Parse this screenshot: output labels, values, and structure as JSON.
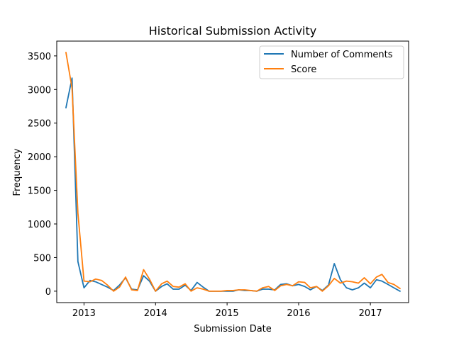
{
  "chart_data": {
    "type": "line",
    "title": "Historical Submission Activity",
    "xlabel": "Submission Date",
    "ylabel": "Frequency",
    "x_axis_type": "date",
    "xlim": [
      "2012-08-15",
      "2017-07-15"
    ],
    "ylim": [
      -170,
      3720
    ],
    "x_ticks": [
      {
        "value": "2013-01-01",
        "label": "2013"
      },
      {
        "value": "2014-01-01",
        "label": "2014"
      },
      {
        "value": "2015-01-01",
        "label": "2015"
      },
      {
        "value": "2016-01-01",
        "label": "2016"
      },
      {
        "value": "2017-01-01",
        "label": "2017"
      }
    ],
    "y_ticks": [
      0,
      500,
      1000,
      1500,
      2000,
      2500,
      3000,
      3500
    ],
    "grid": false,
    "legend_position": "top-right",
    "x": [
      "2012-10-01",
      "2012-11-01",
      "2012-12-01",
      "2013-01-01",
      "2013-02-01",
      "2013-03-01",
      "2013-04-01",
      "2013-05-01",
      "2013-06-01",
      "2013-07-01",
      "2013-08-01",
      "2013-09-01",
      "2013-10-01",
      "2013-11-01",
      "2013-12-01",
      "2014-01-01",
      "2014-02-01",
      "2014-03-01",
      "2014-04-01",
      "2014-05-01",
      "2014-06-01",
      "2014-07-01",
      "2014-08-01",
      "2014-09-01",
      "2014-10-01",
      "2014-11-01",
      "2014-12-01",
      "2015-01-01",
      "2015-02-01",
      "2015-03-01",
      "2015-04-01",
      "2015-05-01",
      "2015-06-01",
      "2015-07-01",
      "2015-08-01",
      "2015-09-01",
      "2015-10-01",
      "2015-11-01",
      "2015-12-01",
      "2016-01-01",
      "2016-02-01",
      "2016-03-01",
      "2016-04-01",
      "2016-05-01",
      "2016-06-01",
      "2016-07-01",
      "2016-08-01",
      "2016-09-01",
      "2016-10-01",
      "2016-11-01",
      "2016-12-01",
      "2017-01-01",
      "2017-02-01",
      "2017-03-01",
      "2017-04-01",
      "2017-05-01",
      "2017-06-01"
    ],
    "series": [
      {
        "name": "Number of Comments",
        "color": "#1f77b4",
        "values": [
          2730,
          3170,
          440,
          50,
          160,
          140,
          100,
          60,
          10,
          90,
          200,
          30,
          20,
          230,
          150,
          0,
          70,
          110,
          30,
          30,
          90,
          10,
          130,
          60,
          0,
          0,
          0,
          0,
          0,
          20,
          10,
          10,
          0,
          30,
          30,
          20,
          100,
          110,
          80,
          100,
          70,
          20,
          70,
          10,
          90,
          410,
          170,
          50,
          20,
          50,
          120,
          50,
          170,
          150,
          100,
          50,
          0
        ]
      },
      {
        "name": "Score",
        "color": "#ff7f0e",
        "values": [
          3550,
          3020,
          1160,
          150,
          140,
          180,
          160,
          90,
          0,
          60,
          210,
          20,
          10,
          320,
          180,
          0,
          110,
          150,
          70,
          60,
          110,
          0,
          50,
          30,
          0,
          0,
          0,
          10,
          10,
          20,
          20,
          10,
          0,
          50,
          70,
          10,
          80,
          100,
          80,
          140,
          130,
          50,
          70,
          0,
          80,
          190,
          120,
          150,
          140,
          120,
          200,
          110,
          210,
          250,
          130,
          100,
          40
        ]
      }
    ]
  }
}
